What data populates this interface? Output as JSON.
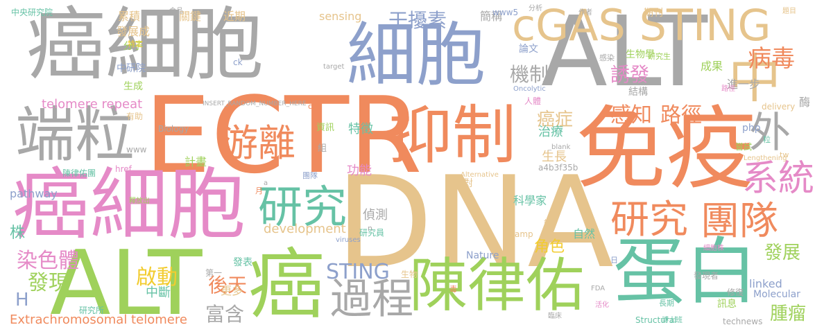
{
  "palette": {
    "gray": "#a8a8a8",
    "orange": "#f08a5d",
    "tan": "#e6c48c",
    "green": "#9fd15b",
    "pink": "#e58ac7",
    "blue": "#8da0cb",
    "teal": "#66c2a5",
    "yellow": "#f2cc30"
  },
  "words": [
    {
      "text": "癌細胞",
      "color": "gray"
    },
    {
      "text": "細胞",
      "color": "blue"
    },
    {
      "text": "ALT",
      "color": "gray"
    },
    {
      "text": "cGAS STING",
      "color": "tan"
    },
    {
      "text": "中",
      "color": "tan"
    },
    {
      "text": "端粒",
      "color": "gray"
    },
    {
      "text": "ECTR",
      "color": "orange"
    },
    {
      "text": "抑制",
      "color": "orange"
    },
    {
      "text": "免疫",
      "color": "orange"
    },
    {
      "text": "外",
      "color": "gray"
    },
    {
      "text": "游離",
      "color": "orange"
    },
    {
      "text": "癌細胞",
      "color": "pink"
    },
    {
      "text": "DNA",
      "color": "tan"
    },
    {
      "text": "研究",
      "color": "teal"
    },
    {
      "text": "系統",
      "color": "pink"
    },
    {
      "text": "研究",
      "color": "orange"
    },
    {
      "text": "團隊",
      "color": "orange"
    },
    {
      "text": "ALT",
      "color": "green"
    },
    {
      "text": "癌",
      "color": "green"
    },
    {
      "text": "過程",
      "color": "gray"
    },
    {
      "text": "陳律佑",
      "color": "green"
    },
    {
      "text": "蛋白",
      "color": "teal"
    },
    {
      "text": "干擾素",
      "color": "blue"
    },
    {
      "text": "病毒",
      "color": "orange"
    },
    {
      "text": "機制",
      "color": "gray"
    },
    {
      "text": "誘發",
      "color": "pink"
    },
    {
      "text": "感知",
      "color": "orange"
    },
    {
      "text": "路徑",
      "color": "orange"
    },
    {
      "text": "癌症",
      "color": "tan"
    },
    {
      "text": "染色體",
      "color": "pink"
    },
    {
      "text": "發現",
      "color": "green"
    },
    {
      "text": "啟動",
      "color": "yellow"
    },
    {
      "text": "STING",
      "color": "blue"
    },
    {
      "text": "後天",
      "color": "orange"
    },
    {
      "text": "富含",
      "color": "gray"
    },
    {
      "text": "發展",
      "color": "green"
    },
    {
      "text": "腫瘤",
      "color": "green"
    },
    {
      "text": "Extrachromosomal telomere",
      "color": "orange"
    },
    {
      "text": "telomere repeat",
      "color": "pink"
    },
    {
      "text": "H",
      "color": "blue"
    },
    {
      "text": "株",
      "color": "teal"
    },
    {
      "text": "pathway",
      "color": "blue"
    },
    {
      "text": "development",
      "color": "tan"
    },
    {
      "text": "偵測",
      "color": "gray"
    },
    {
      "text": "特徵",
      "color": "teal"
    },
    {
      "text": "功能",
      "color": "pink"
    },
    {
      "text": "治療",
      "color": "teal"
    },
    {
      "text": "生長",
      "color": "tan"
    },
    {
      "text": "角色",
      "color": "yellow"
    },
    {
      "text": "linked",
      "color": "blue"
    },
    {
      "text": "中斷",
      "color": "teal"
    },
    {
      "text": "更多",
      "color": "tan"
    },
    {
      "text": "計畫",
      "color": "green"
    },
    {
      "text": "累積",
      "color": "tan"
    },
    {
      "text": "發展成",
      "color": "tan"
    },
    {
      "text": "分子",
      "color": "green"
    },
    {
      "text": "中研院",
      "color": "blue"
    },
    {
      "text": "生成",
      "color": "green"
    },
    {
      "text": "關鍵",
      "color": "tan"
    },
    {
      "text": "近期",
      "color": "tan"
    },
    {
      "text": "sensing",
      "color": "tan"
    },
    {
      "text": "簡稱",
      "color": "gray"
    },
    {
      "text": "論文",
      "color": "blue"
    },
    {
      "text": "成果",
      "color": "green"
    },
    {
      "text": "進一步",
      "color": "gray"
    },
    {
      "text": "結構",
      "color": "gray"
    },
    {
      "text": "生物學",
      "color": "green"
    },
    {
      "text": "自然",
      "color": "teal"
    },
    {
      "text": "科學家",
      "color": "teal"
    },
    {
      "text": "面對",
      "color": "tan"
    },
    {
      "text": "發表",
      "color": "teal"
    },
    {
      "text": "第一",
      "color": "gray"
    },
    {
      "text": "研究所",
      "color": "teal"
    },
    {
      "text": "研究員",
      "color": "teal"
    },
    {
      "text": "Nature",
      "color": "blue"
    },
    {
      "text": "Molecular",
      "color": "blue"
    },
    {
      "text": "Structural",
      "color": "teal"
    },
    {
      "text": "technews",
      "color": "gray"
    },
    {
      "text": "生物",
      "color": "tan"
    },
    {
      "text": "發現者",
      "color": "gray"
    },
    {
      "text": "修復",
      "color": "gray"
    },
    {
      "text": "訊息",
      "color": "green"
    },
    {
      "text": "php",
      "color": "blue"
    },
    {
      "text": "嘗試",
      "color": "green"
    },
    {
      "text": "酶",
      "color": "gray"
    },
    {
      "text": "delivery",
      "color": "tan"
    },
    {
      "text": "中央研究院",
      "color": "teal"
    },
    {
      "text": "www5",
      "color": "blue"
    },
    {
      "text": "Biology",
      "color": "gray"
    },
    {
      "text": "www",
      "color": "gray"
    },
    {
      "text": "a4b3f35b",
      "color": "gray"
    },
    {
      "text": "INSERT_RANDOM_NUMBER_HERE",
      "color": "gray"
    },
    {
      "text": "ck",
      "color": "blue"
    },
    {
      "text": "target",
      "color": "gray"
    },
    {
      "text": "Oncolytic",
      "color": "blue"
    },
    {
      "text": "Lengthening",
      "color": "tan"
    },
    {
      "text": "Alternative",
      "color": "tan"
    },
    {
      "text": "_blank",
      "color": "gray"
    },
    {
      "text": "viruses",
      "color": "blue"
    },
    {
      "text": "amp",
      "color": "tan"
    },
    {
      "text": "href",
      "color": "pink"
    },
    {
      "text": "陳律佑團",
      "color": "teal"
    },
    {
      "text": "團隊",
      "color": "blue"
    },
    {
      "text": "資訊",
      "color": "green"
    },
    {
      "text": "有助",
      "color": "tan"
    },
    {
      "text": "人體",
      "color": "pink"
    },
    {
      "text": "組",
      "color": "gray"
    },
    {
      "text": "食品",
      "color": "gray"
    },
    {
      "text": "期刊",
      "color": "tan"
    },
    {
      "text": "分析",
      "color": "gray"
    },
    {
      "text": "作者",
      "color": "gray"
    },
    {
      "text": "題目",
      "color": "tan"
    },
    {
      "text": "研究生",
      "color": "green"
    },
    {
      "text": "感染",
      "color": "gray"
    },
    {
      "text": "細胞株",
      "color": "pink"
    },
    {
      "text": "路徑",
      "color": "pink"
    },
    {
      "text": "特定",
      "color": "yellow"
    },
    {
      "text": "釋放出",
      "color": "green"
    },
    {
      "text": "cb",
      "color": "orange"
    },
    {
      "text": "tw",
      "color": "tan"
    },
    {
      "text": "粒",
      "color": "teal"
    },
    {
      "text": "月",
      "color": "orange"
    },
    {
      "text": "日",
      "color": "blue"
    },
    {
      "text": "n",
      "color": "gray"
    },
    {
      "text": "a",
      "color": "gray"
    },
    {
      "text": "端",
      "color": "tan"
    },
    {
      "text": "毒",
      "color": "orange"
    },
    {
      "text": "FDA",
      "color": "gray"
    },
    {
      "text": "博士班",
      "color": "teal"
    },
    {
      "text": "臨床",
      "color": "gray"
    },
    {
      "text": "活化",
      "color": "pink"
    },
    {
      "text": "長期",
      "color": "teal"
    }
  ]
}
